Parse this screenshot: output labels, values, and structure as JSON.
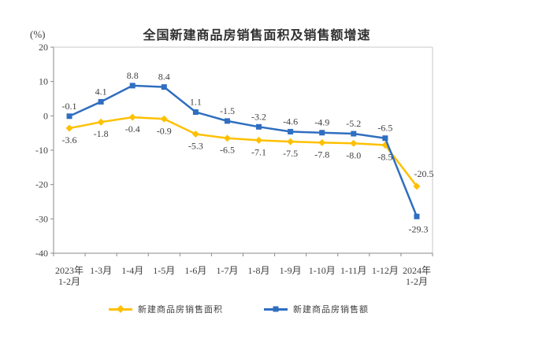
{
  "chart_data": {
    "type": "line",
    "title": "全国新建商品房销售面积及销售额增速",
    "ylabel": "(%)",
    "xlabel": "",
    "categories": [
      [
        "2023年",
        "1-2月"
      ],
      [
        "1-3月"
      ],
      [
        "1-4月"
      ],
      [
        "1-5月"
      ],
      [
        "1-6月"
      ],
      [
        "1-7月"
      ],
      [
        "1-8月"
      ],
      [
        "1-9月"
      ],
      [
        "1-10月"
      ],
      [
        "1-11月"
      ],
      [
        "1-12月"
      ],
      [
        "2024年",
        "1-2月"
      ]
    ],
    "ylim": [
      -40,
      20
    ],
    "yticks": [
      20,
      10,
      0,
      -10,
      -20,
      -30,
      -40
    ],
    "grid": false,
    "legend_position": "bottom",
    "axis": {
      "line_color": "#8a8a8a",
      "border_color": "#c9c9c9"
    },
    "series": [
      {
        "id": "sales-area",
        "name": "新建商品房销售面积",
        "color": "#FFC000",
        "marker": "diamond",
        "values": [
          -3.6,
          -1.8,
          -0.4,
          -0.9,
          -5.3,
          -6.5,
          -7.1,
          -7.5,
          -7.8,
          -8.0,
          -8.5,
          -20.5
        ],
        "labels": [
          "-3.6",
          "-1.8",
          "-0.4",
          "-0.9",
          "-5.3",
          "-6.5",
          "-7.1",
          "-7.5",
          "-7.8",
          "-8.0",
          "-8.5",
          "-20.5"
        ],
        "label_position": "below",
        "label_overrides": {
          "11": "above-right"
        }
      },
      {
        "id": "sales-amount",
        "name": "新建商品房销售额",
        "color": "#2F6EC0",
        "marker": "square",
        "values": [
          -0.1,
          4.1,
          8.8,
          8.4,
          1.1,
          -1.5,
          -3.2,
          -4.6,
          -4.9,
          -5.2,
          -6.5,
          -29.3
        ],
        "labels": [
          "-0.1",
          "4.1",
          "8.8",
          "8.4",
          "1.1",
          "-1.5",
          "-3.2",
          "-4.6",
          "-4.9",
          "-5.2",
          "-6.5",
          "-29.3"
        ],
        "label_position": "above",
        "label_overrides": {
          "11": "below-far"
        }
      }
    ]
  }
}
